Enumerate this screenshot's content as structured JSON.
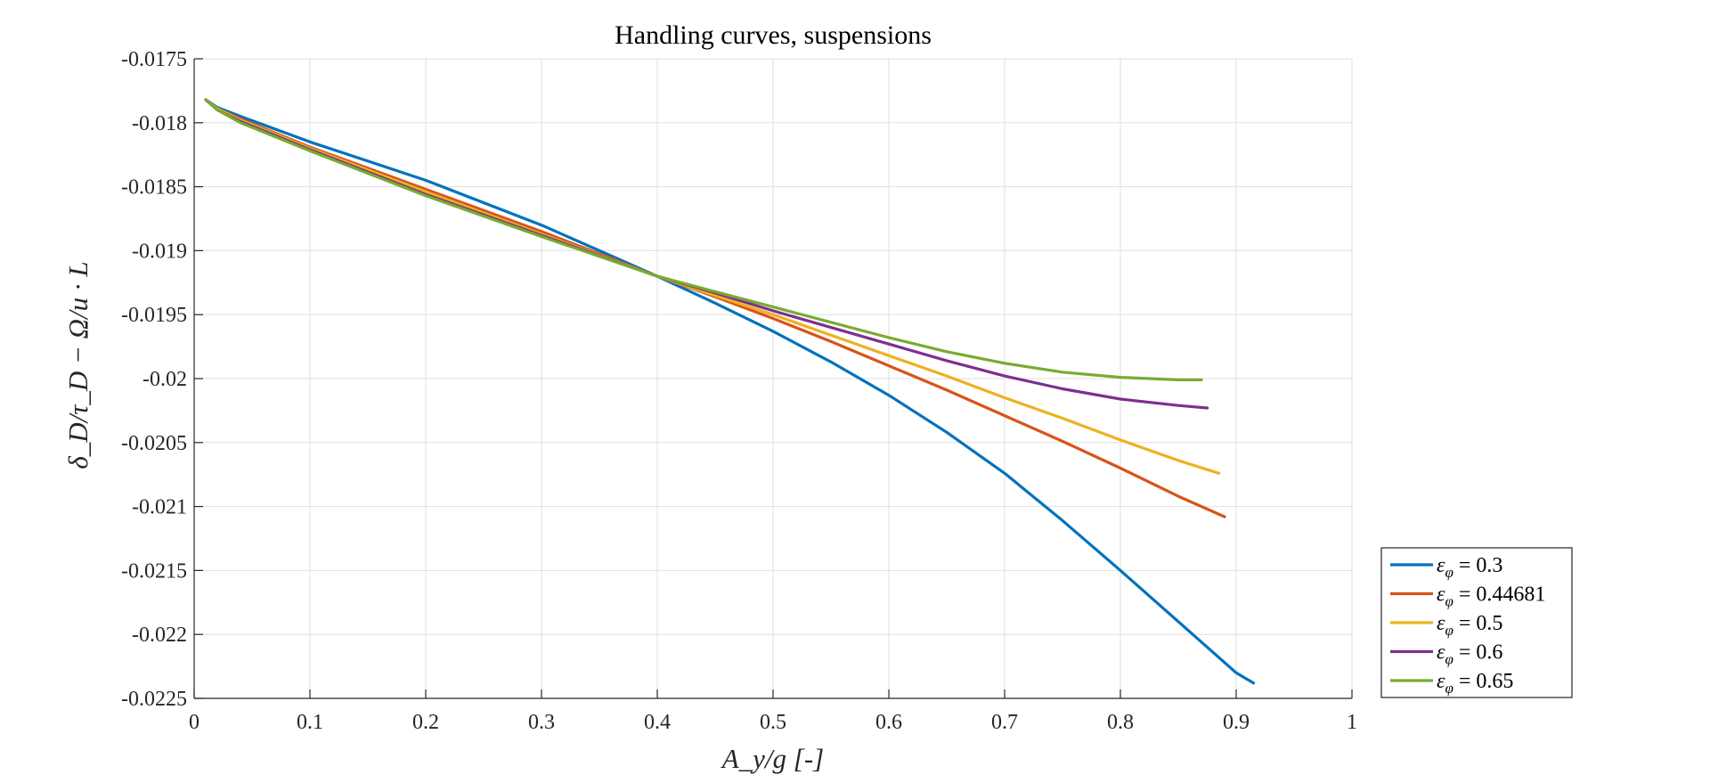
{
  "chart_data": {
    "type": "line",
    "title": "Handling curves, suspensions",
    "xlabel": "A_y/g [-]",
    "ylabel": "δ_D/τ_D − Ω/u · L",
    "xlim": [
      0,
      1
    ],
    "ylim": [
      -0.0225,
      -0.0175
    ],
    "xticks": [
      0,
      0.1,
      0.2,
      0.3,
      0.4,
      0.5,
      0.6,
      0.7,
      0.8,
      0.9,
      1
    ],
    "xtick_labels": [
      "0",
      "0.1",
      "0.2",
      "0.3",
      "0.4",
      "0.5",
      "0.6",
      "0.7",
      "0.8",
      "0.9",
      "1"
    ],
    "yticks": [
      -0.0175,
      -0.018,
      -0.0185,
      -0.019,
      -0.0195,
      -0.02,
      -0.0205,
      -0.021,
      -0.0215,
      -0.022,
      -0.0225
    ],
    "ytick_labels": [
      "-0.0175",
      "-0.018",
      "-0.0185",
      "-0.019",
      "-0.0195",
      "-0.02",
      "-0.0205",
      "-0.021",
      "-0.0215",
      "-0.022",
      "-0.0225"
    ],
    "grid": true,
    "legend_position": "bottom-right-outside",
    "series": [
      {
        "name": "ε_φ = 0.3",
        "legend_symbol": "ε",
        "legend_sub": "φ",
        "legend_value": " = 0.3",
        "color": "#0072BD",
        "x": [
          0.01,
          0.02,
          0.04,
          0.1,
          0.2,
          0.3,
          0.35,
          0.4,
          0.45,
          0.5,
          0.55,
          0.6,
          0.65,
          0.7,
          0.75,
          0.8,
          0.85,
          0.9,
          0.915
        ],
        "y": [
          -0.01782,
          -0.01788,
          -0.01795,
          -0.01815,
          -0.01845,
          -0.0188,
          -0.019,
          -0.0192,
          -0.01941,
          -0.01963,
          -0.01987,
          -0.02013,
          -0.02042,
          -0.02074,
          -0.02111,
          -0.0215,
          -0.0219,
          -0.0223,
          -0.02238
        ]
      },
      {
        "name": "ε_φ = 0.44681",
        "legend_symbol": "ε",
        "legend_sub": "φ",
        "legend_value": " = 0.44681",
        "color": "#D95319",
        "x": [
          0.01,
          0.02,
          0.04,
          0.1,
          0.2,
          0.3,
          0.4,
          0.45,
          0.5,
          0.55,
          0.6,
          0.65,
          0.7,
          0.75,
          0.8,
          0.85,
          0.89
        ],
        "y": [
          -0.01782,
          -0.01789,
          -0.01797,
          -0.01819,
          -0.01852,
          -0.01885,
          -0.0192,
          -0.01936,
          -0.01953,
          -0.01971,
          -0.0199,
          -0.02009,
          -0.02029,
          -0.02049,
          -0.0207,
          -0.02092,
          -0.02108
        ]
      },
      {
        "name": "ε_φ = 0.5",
        "legend_symbol": "ε",
        "legend_sub": "φ",
        "legend_value": " = 0.5",
        "color": "#EDB120",
        "x": [
          0.01,
          0.02,
          0.04,
          0.1,
          0.2,
          0.3,
          0.4,
          0.45,
          0.5,
          0.55,
          0.6,
          0.65,
          0.7,
          0.75,
          0.8,
          0.85,
          0.885
        ],
        "y": [
          -0.01782,
          -0.01789,
          -0.01798,
          -0.0182,
          -0.01854,
          -0.01887,
          -0.0192,
          -0.01935,
          -0.0195,
          -0.01966,
          -0.01982,
          -0.01998,
          -0.02015,
          -0.02031,
          -0.02048,
          -0.02064,
          -0.02074
        ]
      },
      {
        "name": "ε_φ = 0.6",
        "legend_symbol": "ε",
        "legend_sub": "φ",
        "legend_value": " = 0.6",
        "color": "#7E2F8E",
        "x": [
          0.01,
          0.02,
          0.04,
          0.1,
          0.2,
          0.3,
          0.4,
          0.45,
          0.5,
          0.55,
          0.6,
          0.65,
          0.7,
          0.75,
          0.8,
          0.85,
          0.875
        ],
        "y": [
          -0.01782,
          -0.0179,
          -0.01799,
          -0.01821,
          -0.01856,
          -0.01888,
          -0.0192,
          -0.01933,
          -0.01947,
          -0.0196,
          -0.01973,
          -0.01986,
          -0.01998,
          -0.02008,
          -0.02016,
          -0.02021,
          -0.02023
        ]
      },
      {
        "name": "ε_φ = 0.65",
        "legend_symbol": "ε",
        "legend_sub": "φ",
        "legend_value": " = 0.65",
        "color": "#77AC30",
        "x": [
          0.01,
          0.02,
          0.04,
          0.1,
          0.2,
          0.3,
          0.4,
          0.45,
          0.5,
          0.55,
          0.6,
          0.65,
          0.7,
          0.75,
          0.8,
          0.85,
          0.87
        ],
        "y": [
          -0.01782,
          -0.0179,
          -0.018,
          -0.01822,
          -0.01857,
          -0.01889,
          -0.0192,
          -0.01932,
          -0.01944,
          -0.01956,
          -0.01968,
          -0.01979,
          -0.01988,
          -0.01995,
          -0.01999,
          -0.02001,
          -0.02001
        ]
      }
    ]
  }
}
